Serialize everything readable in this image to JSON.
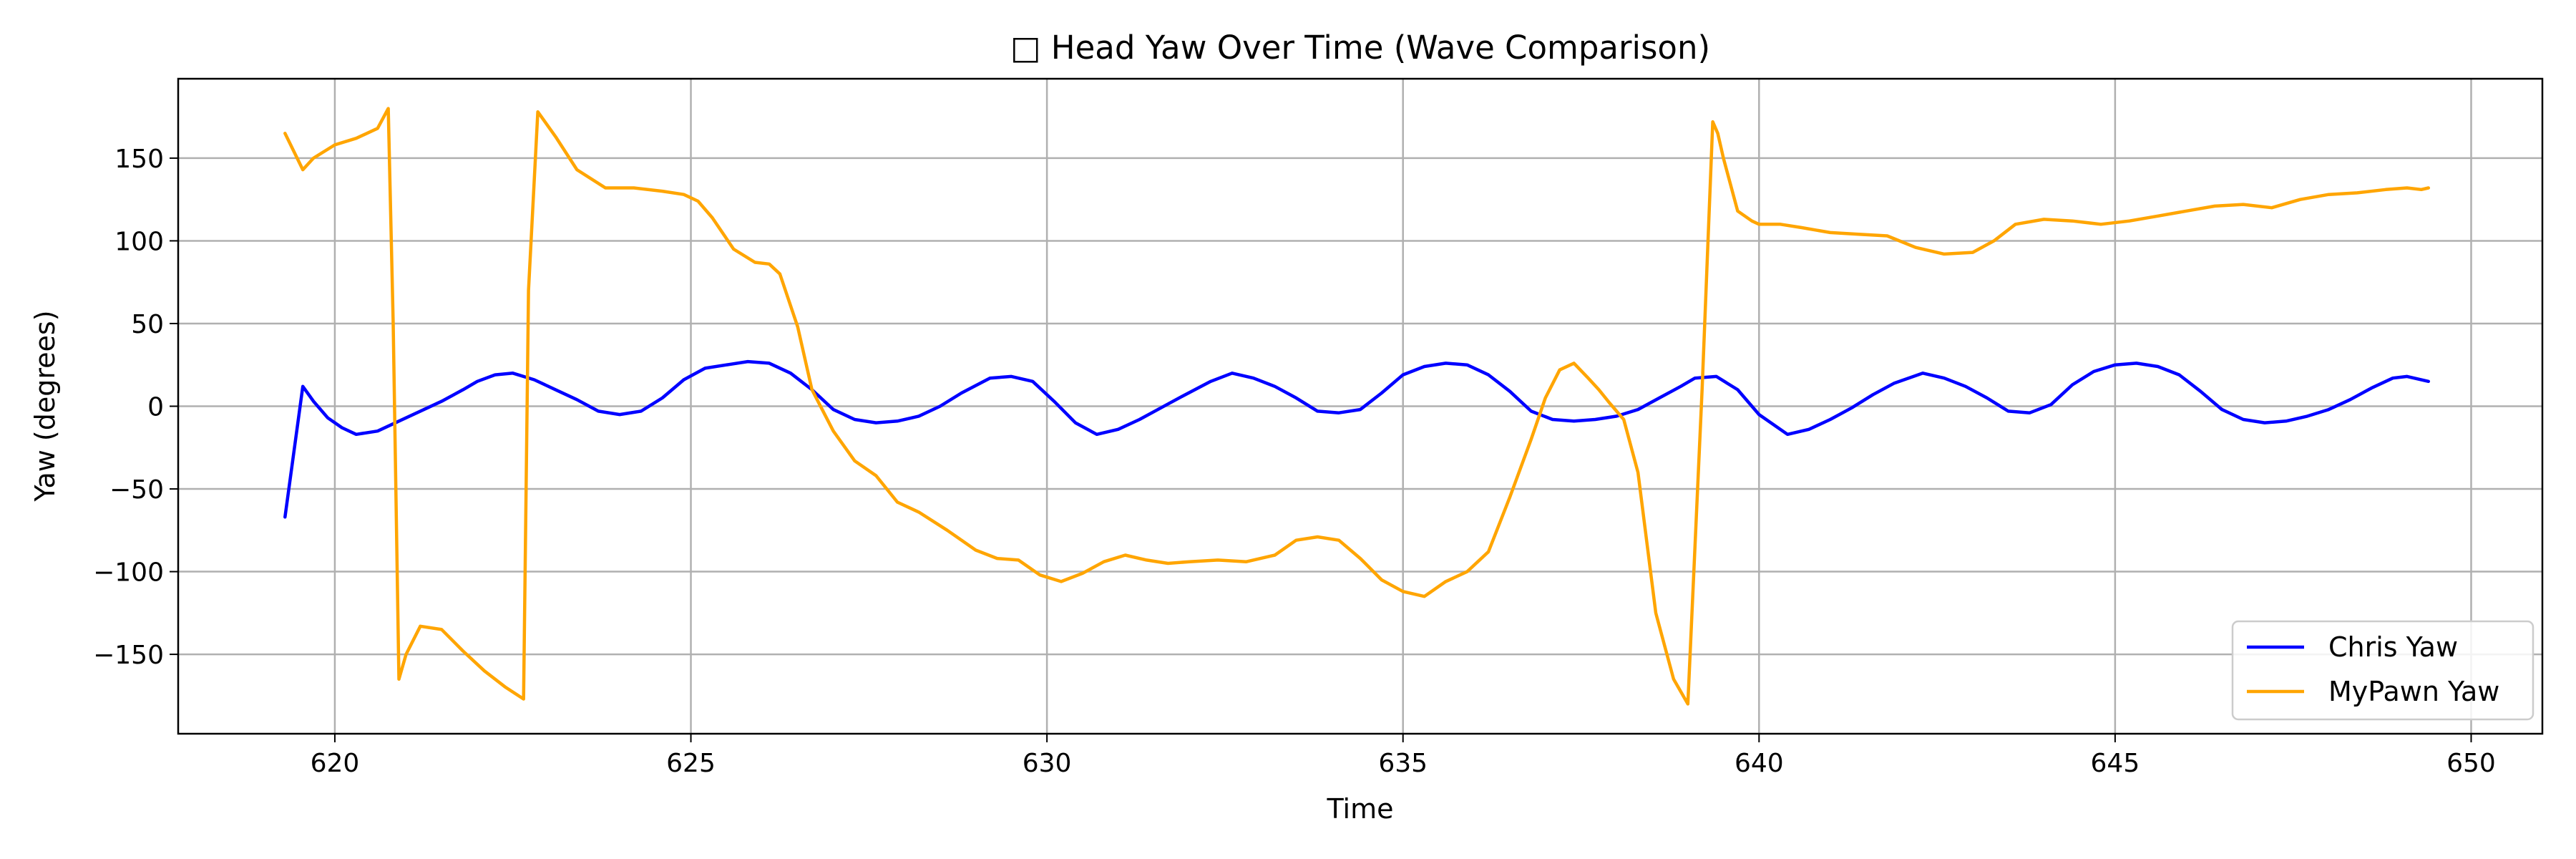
{
  "chart_data": {
    "type": "line",
    "title": "□ Head Yaw Over Time (Wave Comparison)",
    "xlabel": "Time",
    "ylabel": "Yaw (degrees)",
    "xlim": [
      617.8,
      651.0
    ],
    "ylim": [
      -198,
      198
    ],
    "xticks": [
      620,
      625,
      630,
      635,
      640,
      645,
      650
    ],
    "yticks": [
      -150,
      -100,
      -50,
      0,
      50,
      100,
      150
    ],
    "grid": true,
    "legend_position": "lower-right",
    "series": [
      {
        "name": "Chris Yaw",
        "color": "#0000ff",
        "x": [
          619.3,
          619.55,
          619.7,
          619.9,
          620.1,
          620.3,
          620.6,
          620.9,
          621.2,
          621.5,
          621.8,
          622.0,
          622.25,
          622.5,
          622.8,
          623.1,
          623.4,
          623.7,
          624.0,
          624.3,
          624.6,
          624.9,
          625.2,
          625.5,
          625.8,
          626.1,
          626.4,
          626.7,
          627.0,
          627.3,
          627.6,
          627.9,
          628.2,
          628.5,
          628.8,
          629.2,
          629.5,
          629.8,
          630.1,
          630.4,
          630.7,
          631.0,
          631.3,
          631.6,
          631.9,
          632.3,
          632.6,
          632.9,
          633.2,
          633.5,
          633.8,
          634.1,
          634.4,
          634.7,
          635.0,
          635.3,
          635.6,
          635.9,
          636.2,
          636.5,
          636.8,
          637.1,
          637.4,
          637.7,
          638.0,
          638.3,
          638.6,
          638.9,
          639.1,
          639.4,
          639.7,
          640.0,
          640.4,
          640.7,
          641.0,
          641.3,
          641.6,
          641.9,
          642.3,
          642.6,
          642.9,
          643.2,
          643.5,
          643.8,
          644.1,
          644.4,
          644.7,
          645.0,
          645.3,
          645.6,
          645.9,
          646.2,
          646.5,
          646.8,
          647.1,
          647.4,
          647.7,
          648.0,
          648.3,
          648.6,
          648.9,
          649.1,
          649.4
        ],
        "y": [
          -67,
          12,
          3,
          -7,
          -13,
          -17,
          -15,
          -9,
          -3,
          3,
          10,
          15,
          19,
          20,
          16,
          10,
          4,
          -3,
          -5,
          -3,
          5,
          16,
          23,
          25,
          27,
          26,
          20,
          10,
          -2,
          -8,
          -10,
          -9,
          -6,
          0,
          8,
          17,
          18,
          15,
          3,
          -10,
          -17,
          -14,
          -8,
          -1,
          6,
          15,
          20,
          17,
          12,
          5,
          -3,
          -4,
          -2,
          8,
          19,
          24,
          26,
          25,
          19,
          9,
          -3,
          -8,
          -9,
          -8,
          -6,
          -2,
          5,
          12,
          17,
          18,
          10,
          -5,
          -17,
          -14,
          -8,
          -1,
          7,
          14,
          20,
          17,
          12,
          5,
          -3,
          -4,
          1,
          13,
          21,
          25,
          26,
          24,
          19,
          9,
          -2,
          -8,
          -10,
          -9,
          -6,
          -2,
          4,
          11,
          17,
          18,
          15
        ]
      },
      {
        "name": "MyPawn Yaw",
        "color": "#ffa500",
        "x": [
          619.3,
          619.55,
          619.7,
          620.0,
          620.3,
          620.6,
          620.75,
          620.82,
          620.9,
          621.0,
          621.2,
          621.5,
          621.8,
          622.1,
          622.4,
          622.65,
          622.72,
          622.85,
          623.1,
          623.4,
          623.8,
          624.2,
          624.6,
          624.9,
          625.1,
          625.3,
          625.6,
          625.9,
          626.1,
          626.25,
          626.5,
          626.7,
          627.0,
          627.3,
          627.6,
          627.9,
          628.2,
          628.6,
          629.0,
          629.3,
          629.6,
          629.9,
          630.2,
          630.5,
          630.8,
          631.1,
          631.4,
          631.7,
          632.0,
          632.4,
          632.8,
          633.2,
          633.5,
          633.8,
          634.1,
          634.4,
          634.7,
          635.0,
          635.3,
          635.6,
          635.9,
          636.2,
          636.5,
          636.8,
          637.0,
          637.2,
          637.4,
          637.6,
          637.75,
          637.9,
          638.1,
          638.3,
          638.55,
          638.8,
          639.0,
          639.2,
          639.35,
          639.42,
          639.5,
          639.7,
          639.9,
          640.0,
          640.3,
          640.6,
          641.0,
          641.4,
          641.8,
          642.2,
          642.6,
          643.0,
          643.3,
          643.6,
          644.0,
          644.4,
          644.8,
          645.2,
          645.6,
          646.0,
          646.4,
          646.8,
          647.2,
          647.6,
          648.0,
          648.4,
          648.8,
          649.1,
          649.3,
          649.4
        ],
        "y": [
          165,
          143,
          150,
          158,
          162,
          168,
          180,
          50,
          -165,
          -150,
          -133,
          -135,
          -148,
          -160,
          -170,
          -177,
          70,
          178,
          163,
          143,
          132,
          132,
          130,
          128,
          124,
          114,
          95,
          87,
          86,
          80,
          48,
          10,
          -15,
          -33,
          -42,
          -58,
          -64,
          -75,
          -87,
          -92,
          -93,
          -102,
          -106,
          -101,
          -94,
          -90,
          -93,
          -95,
          -94,
          -93,
          -94,
          -90,
          -81,
          -79,
          -81,
          -92,
          -105,
          -112,
          -115,
          -106,
          -100,
          -88,
          -55,
          -20,
          5,
          22,
          26,
          17,
          10,
          2,
          -8,
          -40,
          -125,
          -165,
          -180,
          10,
          172,
          165,
          150,
          118,
          112,
          110,
          110,
          108,
          105,
          104,
          103,
          96,
          92,
          93,
          100,
          110,
          113,
          112,
          110,
          112,
          115,
          118,
          121,
          122,
          120,
          125,
          128,
          129,
          131,
          132,
          131,
          132
        ]
      }
    ]
  }
}
